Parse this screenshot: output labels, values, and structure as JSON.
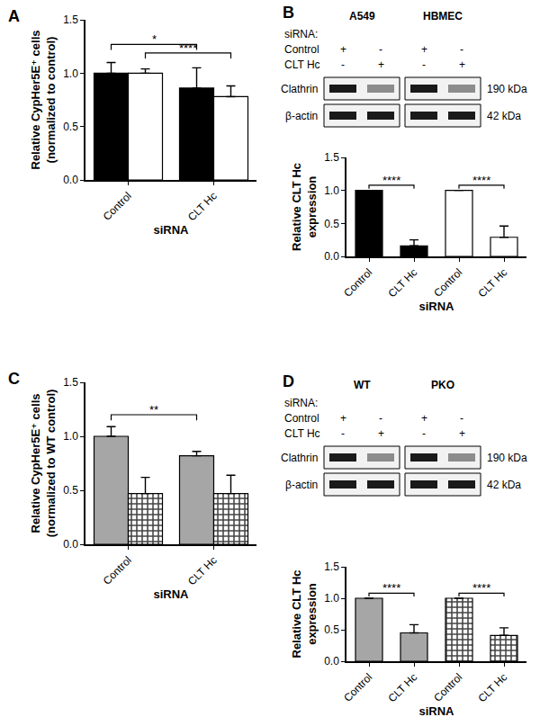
{
  "chart_data": [
    {
      "panel": "A",
      "type": "bar",
      "categories": [
        "Control",
        "CLT Hc"
      ],
      "series": [
        {
          "color": "#000000",
          "values": [
            1.0,
            0.86
          ],
          "errors": [
            0.1,
            0.19
          ]
        },
        {
          "color": "#ffffff",
          "values": [
            1.0,
            0.78
          ],
          "errors": [
            0.04,
            0.1
          ]
        }
      ],
      "xlabel": "siRNA",
      "ylabel": [
        "Relative CypHer5E⁺ cells",
        "(normalized to control)"
      ],
      "ylim": [
        0,
        1.5
      ],
      "yticks": [
        {
          "value": 0,
          "label": "0.0"
        },
        {
          "value": 0.5,
          "label": "0.5"
        },
        {
          "value": 1,
          "label": "1.0"
        },
        {
          "value": 1.5,
          "label": "1.5"
        }
      ],
      "significance": [
        {
          "label": "*",
          "from": [
            0,
            0
          ],
          "to": [
            1,
            0
          ],
          "y": 1.27
        },
        {
          "label": "****",
          "from": [
            0,
            1
          ],
          "to": [
            1,
            1
          ],
          "y": 1.19
        }
      ]
    },
    {
      "type": "bar",
      "categories": [
        "Control",
        "CLT Hc",
        "Control",
        "CLT Hc"
      ],
      "series": [
        {
          "color": "#000000",
          "values": [
            1.0,
            0.16,
            null,
            null
          ],
          "errors": [
            null,
            0.09,
            null,
            null
          ]
        },
        {
          "color": "#ffffff",
          "values": [
            null,
            null,
            1.0,
            0.29
          ],
          "errors": [
            null,
            null,
            null,
            0.17
          ]
        }
      ],
      "xlabel": "siRNA",
      "ylabel": [
        "Relative CLT Hc",
        "expression"
      ],
      "ylim": [
        0,
        1.5
      ],
      "yticks": [
        {
          "value": 0,
          "label": "0.0"
        },
        {
          "value": 0.5,
          "label": "0.5"
        },
        {
          "value": 1,
          "label": "1.0"
        },
        {
          "value": 1.5,
          "label": "1.5"
        }
      ],
      "significance": [
        {
          "label": "****",
          "from": [
            0,
            0
          ],
          "to": [
            1,
            0
          ],
          "y": 1.08
        },
        {
          "label": "****",
          "from": [
            2,
            1
          ],
          "to": [
            3,
            1
          ],
          "y": 1.08
        }
      ]
    },
    {
      "panel": "C",
      "type": "bar",
      "categories": [
        "Control",
        "CLT Hc"
      ],
      "series": [
        {
          "color": "#a6a6a6",
          "values": [
            1.0,
            0.82
          ],
          "errors": [
            0.09,
            0.04
          ]
        },
        {
          "color": "#444444",
          "marker": "checkered",
          "values": [
            0.47,
            0.47
          ],
          "errors": [
            0.15,
            0.17
          ]
        }
      ],
      "xlabel": "siRNA",
      "ylabel": [
        "Relative CypHer5E⁺ cells",
        "(normalized to WT control)"
      ],
      "ylim": [
        0,
        1.5
      ],
      "yticks": [
        {
          "value": 0,
          "label": "0.0"
        },
        {
          "value": 0.5,
          "label": "0.5"
        },
        {
          "value": 1,
          "label": "1.0"
        },
        {
          "value": 1.5,
          "label": "1.5"
        }
      ],
      "significance": [
        {
          "label": "**",
          "from": [
            0,
            0
          ],
          "to": [
            1,
            0
          ],
          "y": 1.2
        }
      ]
    },
    {
      "type": "bar",
      "categories": [
        "Control",
        "CLT Hc",
        "Control",
        "CLT Hc"
      ],
      "series": [
        {
          "color": "#a6a6a6",
          "values": [
            1.0,
            0.45,
            null,
            null
          ],
          "errors": [
            null,
            0.13,
            null,
            null
          ]
        },
        {
          "color": "#444444",
          "marker": "checkered",
          "values": [
            null,
            null,
            1.0,
            0.41
          ],
          "errors": [
            null,
            null,
            null,
            0.12
          ]
        }
      ],
      "xlabel": "siRNA",
      "ylabel": [
        "Relative CLT Hc",
        "expression"
      ],
      "ylim": [
        0,
        1.5
      ],
      "yticks": [
        {
          "value": 0,
          "label": "0.0"
        },
        {
          "value": 0.5,
          "label": "0.5"
        },
        {
          "value": 1,
          "label": "1.0"
        },
        {
          "value": 1.5,
          "label": "1.5"
        }
      ],
      "significance": [
        {
          "label": "****",
          "from": [
            0,
            0
          ],
          "to": [
            1,
            0
          ],
          "y": 1.08
        },
        {
          "label": "****",
          "from": [
            2,
            1
          ],
          "to": [
            3,
            1
          ],
          "y": 1.08
        }
      ]
    }
  ],
  "blots": [
    {
      "panel": "B",
      "groups": [
        {
          "label": "A549",
          "lanes": 2
        },
        {
          "label": "HBMEC",
          "lanes": 2
        }
      ],
      "condition_title": "siRNA:",
      "conditions": [
        {
          "label": "Control",
          "lanes": [
            "+",
            "-",
            "+",
            "-"
          ]
        },
        {
          "label": "CLT Hc",
          "lanes": [
            "-",
            "+",
            "-",
            "+"
          ]
        }
      ],
      "bands": [
        {
          "label": "Clathrin",
          "size": "190 kDa"
        },
        {
          "label": "β-actin",
          "size": "42 kDa"
        }
      ]
    },
    {
      "panel": "D",
      "groups": [
        {
          "label": "WT",
          "lanes": 2
        },
        {
          "label": "PKO",
          "lanes": 2
        }
      ],
      "condition_title": "siRNA:",
      "conditions": [
        {
          "label": "Control",
          "lanes": [
            "+",
            "-",
            "+",
            "-"
          ]
        },
        {
          "label": "CLT Hc",
          "lanes": [
            "-",
            "+",
            "-",
            "+"
          ]
        }
      ],
      "bands": [
        {
          "label": "Clathrin",
          "size": "190 kDa"
        },
        {
          "label": "β-actin",
          "size": "42 kDa"
        }
      ]
    }
  ]
}
